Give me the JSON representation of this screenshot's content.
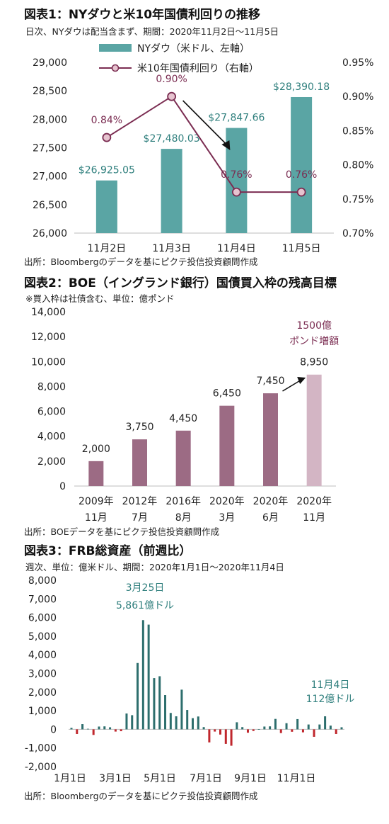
{
  "chart1": {
    "title": "図表1：NYダウと米10年国債利回りの推移",
    "subtitle": "日次、NYダウは配当含まず、期間：2020年11月2日～11月5日",
    "source": "出所：Bloombergのデータを基にピクテ投信投資顧問作成",
    "colors": {
      "bar": "#5aa5a4",
      "line": "#7b2d52",
      "marker": "#e6c3cf",
      "bar_label": "#2f7f7d",
      "line_label": "#7b2d52"
    },
    "chart_data": {
      "type": "bar+line",
      "categories": [
        "11月2日",
        "11月3日",
        "11月4日",
        "11月5日"
      ],
      "series": [
        {
          "name": "NYダウ（米ドル、左軸）",
          "type": "bar",
          "axis": "left",
          "values": [
            26925.05,
            27480.03,
            27847.66,
            28390.18
          ],
          "labels": [
            "$26,925.05",
            "$27,480.03",
            "$27,847.66",
            "$28,390.18"
          ]
        },
        {
          "name": "米10年国債利回り（右軸）",
          "type": "line",
          "axis": "right",
          "values": [
            0.84,
            0.9,
            0.76,
            0.76
          ],
          "labels": [
            "0.84%",
            "0.90%",
            "0.76%",
            "0.76%"
          ]
        }
      ],
      "y_left": {
        "min": 26000,
        "max": 29000,
        "ticks": [
          "26,000",
          "26,500",
          "27,000",
          "27,500",
          "28,000",
          "28,500",
          "29,000"
        ]
      },
      "y_right": {
        "min": 0.7,
        "max": 0.95,
        "ticks": [
          "0.70%",
          "0.75%",
          "0.80%",
          "0.85%",
          "0.90%",
          "0.95%"
        ]
      },
      "legend_position": "top-center",
      "annotation": "arrow from 11月3日 to 11月4日 (yield decline)"
    }
  },
  "chart2": {
    "title": "図表2：BOE（イングランド銀行）国債買入枠の残高目標",
    "subtitle": "※買入枠は社債含む、単位：億ポンド",
    "source": "出所：BOEデータを基にピクテ投信投資顧問作成",
    "colors": {
      "bar": "#9c6b84",
      "last_bar": "#d3b5c4",
      "annotation": "#7b2d52"
    },
    "chart_data": {
      "type": "bar",
      "categories": [
        [
          "2009年",
          "11月"
        ],
        [
          "2012年",
          "7月"
        ],
        [
          "2016年",
          "8月"
        ],
        [
          "2020年",
          "3月"
        ],
        [
          "2020年",
          "6月"
        ],
        [
          "2020年",
          "11月"
        ]
      ],
      "values": [
        2000,
        3750,
        4450,
        6450,
        7450,
        8950
      ],
      "labels": [
        "2,000",
        "3,750",
        "4,450",
        "6,450",
        "7,450",
        "8,950"
      ],
      "y": {
        "min": 0,
        "max": 14000,
        "ticks": [
          "0",
          "2,000",
          "4,000",
          "6,000",
          "8,000",
          "10,000",
          "12,000",
          "14,000"
        ]
      },
      "annotation": [
        "1500億",
        "ポンド増額"
      ]
    }
  },
  "chart3": {
    "title": "図表3：FRB総資産（前週比）",
    "subtitle": "週次、単位：億米ドル、期間：2020年1月1日～2020年11月4日",
    "source": "出所：Bloombergのデータを基にピクテ投信投資顧問作成",
    "colors": {
      "pos": "#2d6e6d",
      "neg": "#c0272d",
      "annotation": "#2f7f7d"
    },
    "chart_data": {
      "type": "bar",
      "x_start": "2020-01-01",
      "x_interval": "weekly",
      "values": [
        80,
        -250,
        280,
        30,
        -300,
        150,
        160,
        110,
        -120,
        -100,
        850,
        760,
        3560,
        5861,
        5620,
        2750,
        2850,
        1840,
        880,
        700,
        2130,
        1040,
        600,
        690,
        120,
        -700,
        -120,
        -280,
        -780,
        -880,
        380,
        120,
        -180,
        -90,
        10,
        150,
        160,
        560,
        -200,
        330,
        -130,
        550,
        -160,
        260,
        -400,
        260,
        700,
        200,
        -250,
        112
      ],
      "x_ticks": [
        "1月1日",
        "3月1日",
        "5月1日",
        "7月1日",
        "9月1日",
        "11月1日"
      ],
      "y": {
        "min": -2000,
        "max": 8000,
        "ticks": [
          "-2,000",
          "-1,000",
          "0",
          "1,000",
          "2,000",
          "3,000",
          "4,000",
          "5,000",
          "6,000",
          "7,000",
          "8,000"
        ]
      },
      "annotations": [
        {
          "lines": [
            "3月25日",
            "5,861億ドル"
          ]
        },
        {
          "lines": [
            "11月4日",
            "112億ドル"
          ]
        }
      ]
    }
  }
}
